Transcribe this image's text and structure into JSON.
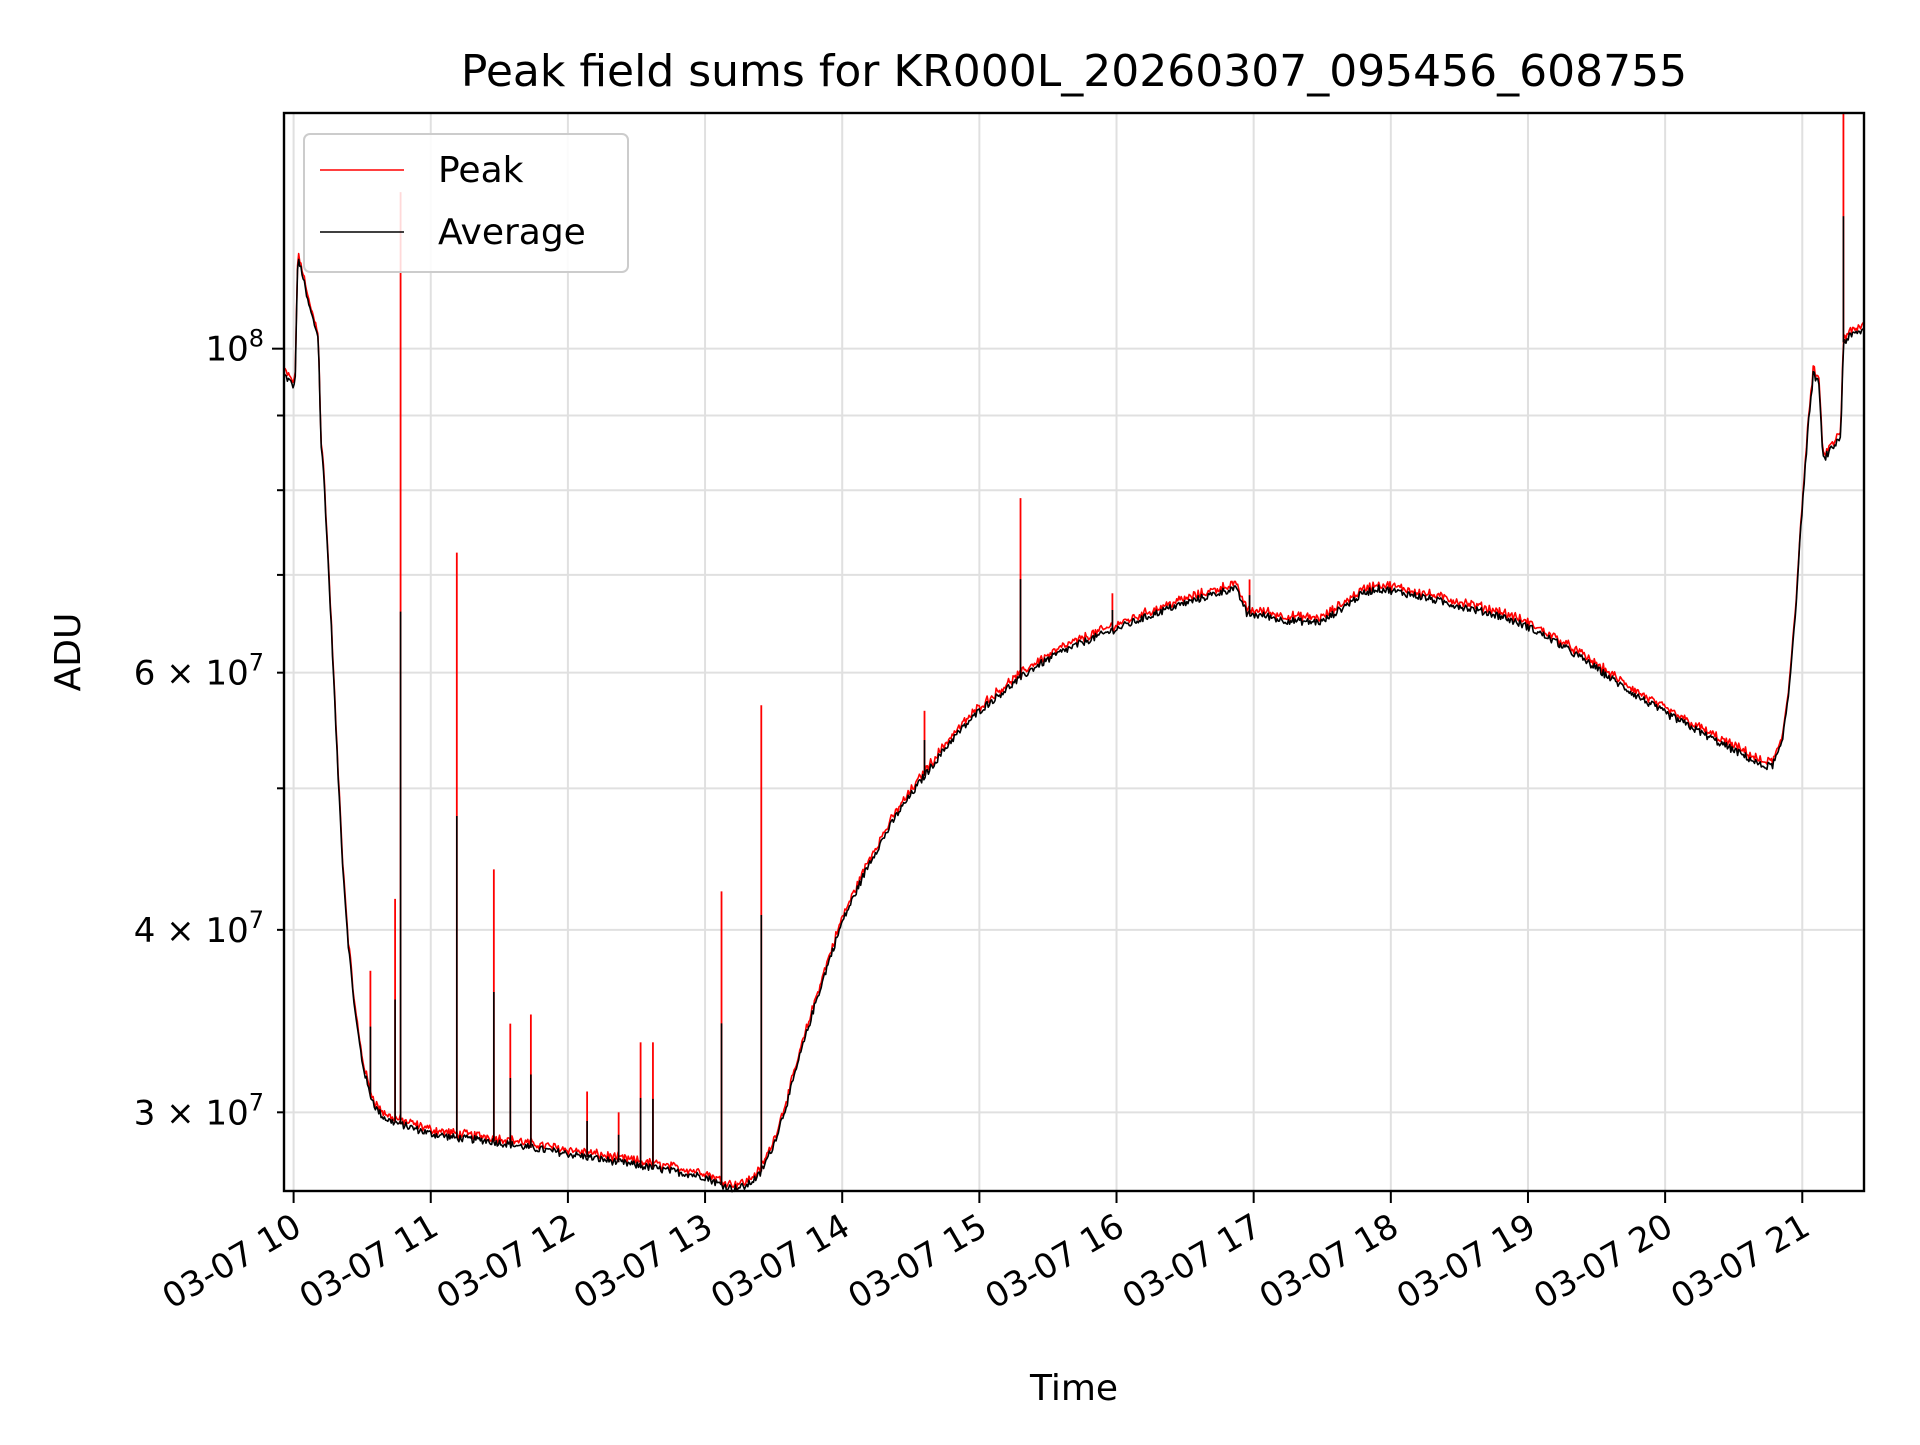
{
  "chart_data": {
    "type": "line",
    "title": "Peak field sums for KR000L_20260307_095456_608755",
    "xlabel": "Time",
    "ylabel": "ADU",
    "yscale": "log",
    "xlim_hours": [
      9.93,
      21.45
    ],
    "ylim": [
      26500000,
      145000000
    ],
    "grid": true,
    "legend_position": "upper-left",
    "x_ticks": [
      {
        "value": 10,
        "label": "03-07 10"
      },
      {
        "value": 11,
        "label": "03-07 11"
      },
      {
        "value": 12,
        "label": "03-07 12"
      },
      {
        "value": 13,
        "label": "03-07 13"
      },
      {
        "value": 14,
        "label": "03-07 14"
      },
      {
        "value": 15,
        "label": "03-07 15"
      },
      {
        "value": 16,
        "label": "03-07 16"
      },
      {
        "value": 17,
        "label": "03-07 17"
      },
      {
        "value": 18,
        "label": "03-07 18"
      },
      {
        "value": 19,
        "label": "03-07 19"
      },
      {
        "value": 20,
        "label": "03-07 20"
      },
      {
        "value": 21,
        "label": "03-07 21"
      }
    ],
    "y_major_ticks": [
      {
        "value": 100000000,
        "base": "10",
        "exp": "8"
      }
    ],
    "y_minor_ticks": [
      {
        "value": 30000000,
        "mant": "3",
        "base": "10",
        "exp": "7"
      },
      {
        "value": 40000000,
        "mant": "4",
        "base": "10",
        "exp": "7"
      },
      {
        "value": 60000000,
        "mant": "6",
        "base": "10",
        "exp": "7"
      }
    ],
    "y_minor_unlabeled": [
      50000000,
      70000000,
      80000000,
      90000000
    ],
    "series": [
      {
        "name": "Peak",
        "color": "#ff0000",
        "spikes": [
          {
            "x": 10.78,
            "y": 128000000
          },
          {
            "x": 10.74,
            "y": 42000000
          },
          {
            "x": 10.56,
            "y": 37500000
          },
          {
            "x": 11.19,
            "y": 72500000
          },
          {
            "x": 11.46,
            "y": 44000000
          },
          {
            "x": 11.58,
            "y": 34500000
          },
          {
            "x": 11.73,
            "y": 35000000
          },
          {
            "x": 12.14,
            "y": 31000000
          },
          {
            "x": 12.37,
            "y": 30000000
          },
          {
            "x": 12.53,
            "y": 33500000
          },
          {
            "x": 12.62,
            "y": 33500000
          },
          {
            "x": 13.12,
            "y": 42500000
          },
          {
            "x": 13.41,
            "y": 57000000
          },
          {
            "x": 14.6,
            "y": 56500000
          },
          {
            "x": 15.3,
            "y": 79000000
          },
          {
            "x": 15.97,
            "y": 68000000
          },
          {
            "x": 16.97,
            "y": 69500000
          },
          {
            "x": 21.3,
            "y": 145000000
          }
        ]
      },
      {
        "name": "Average",
        "color": "#000000",
        "x": [
          9.93,
          9.97,
          10.01,
          10.03,
          10.06,
          10.1,
          10.15,
          10.18,
          10.2,
          10.22,
          10.25,
          10.28,
          10.32,
          10.36,
          10.4,
          10.45,
          10.5,
          10.55,
          10.6,
          10.65,
          10.7,
          10.8,
          10.9,
          11.0,
          11.2,
          11.4,
          11.6,
          11.8,
          12.0,
          12.2,
          12.4,
          12.6,
          12.8,
          13.0,
          13.1,
          13.2,
          13.3,
          13.4,
          13.5,
          13.6,
          13.7,
          13.8,
          13.9,
          14.0,
          14.2,
          14.4,
          14.6,
          14.8,
          15.0,
          15.2,
          15.4,
          15.6,
          15.8,
          16.0,
          16.2,
          16.4,
          16.6,
          16.8,
          16.86,
          16.92,
          16.95,
          17.1,
          17.2,
          17.4,
          17.5,
          17.6,
          17.7,
          17.8,
          17.9,
          18.0,
          18.2,
          18.4,
          18.6,
          18.8,
          19.0,
          19.2,
          19.4,
          19.6,
          19.8,
          20.0,
          20.2,
          20.4,
          20.6,
          20.7,
          20.78,
          20.85,
          20.9,
          20.95,
          21.0,
          21.05,
          21.08,
          21.12,
          21.15,
          21.2,
          21.28,
          21.3,
          21.35,
          21.45
        ],
        "values": [
          96000000,
          95000000,
          94000000,
          115000000,
          113000000,
          108000000,
          104000000,
          102000000,
          86000000,
          82000000,
          72000000,
          63000000,
          52000000,
          44000000,
          39000000,
          35000000,
          32500000,
          31000000,
          30200000,
          29800000,
          29600000,
          29400000,
          29200000,
          29000000,
          28800000,
          28700000,
          28500000,
          28300000,
          28100000,
          27900000,
          27700000,
          27500000,
          27300000,
          27100000,
          26800000,
          26600000,
          26700000,
          27200000,
          28500000,
          30500000,
          33000000,
          35500000,
          38000000,
          40500000,
          44500000,
          48000000,
          51000000,
          54000000,
          56500000,
          58500000,
          60500000,
          62000000,
          63200000,
          64300000,
          65400000,
          66500000,
          67400000,
          68300000,
          68600000,
          67000000,
          65800000,
          65600000,
          65200000,
          65000000,
          65000000,
          66000000,
          67000000,
          68000000,
          68500000,
          68300000,
          67700000,
          67000000,
          66300000,
          65600000,
          64500000,
          63000000,
          61300000,
          59500000,
          57800000,
          56300000,
          55000000,
          53700000,
          52500000,
          51800000,
          51800000,
          53500000,
          58000000,
          66000000,
          78000000,
          90000000,
          96000000,
          95000000,
          84000000,
          85000000,
          87000000,
          101000000,
          102000000,
          103000000
        ]
      }
    ]
  }
}
